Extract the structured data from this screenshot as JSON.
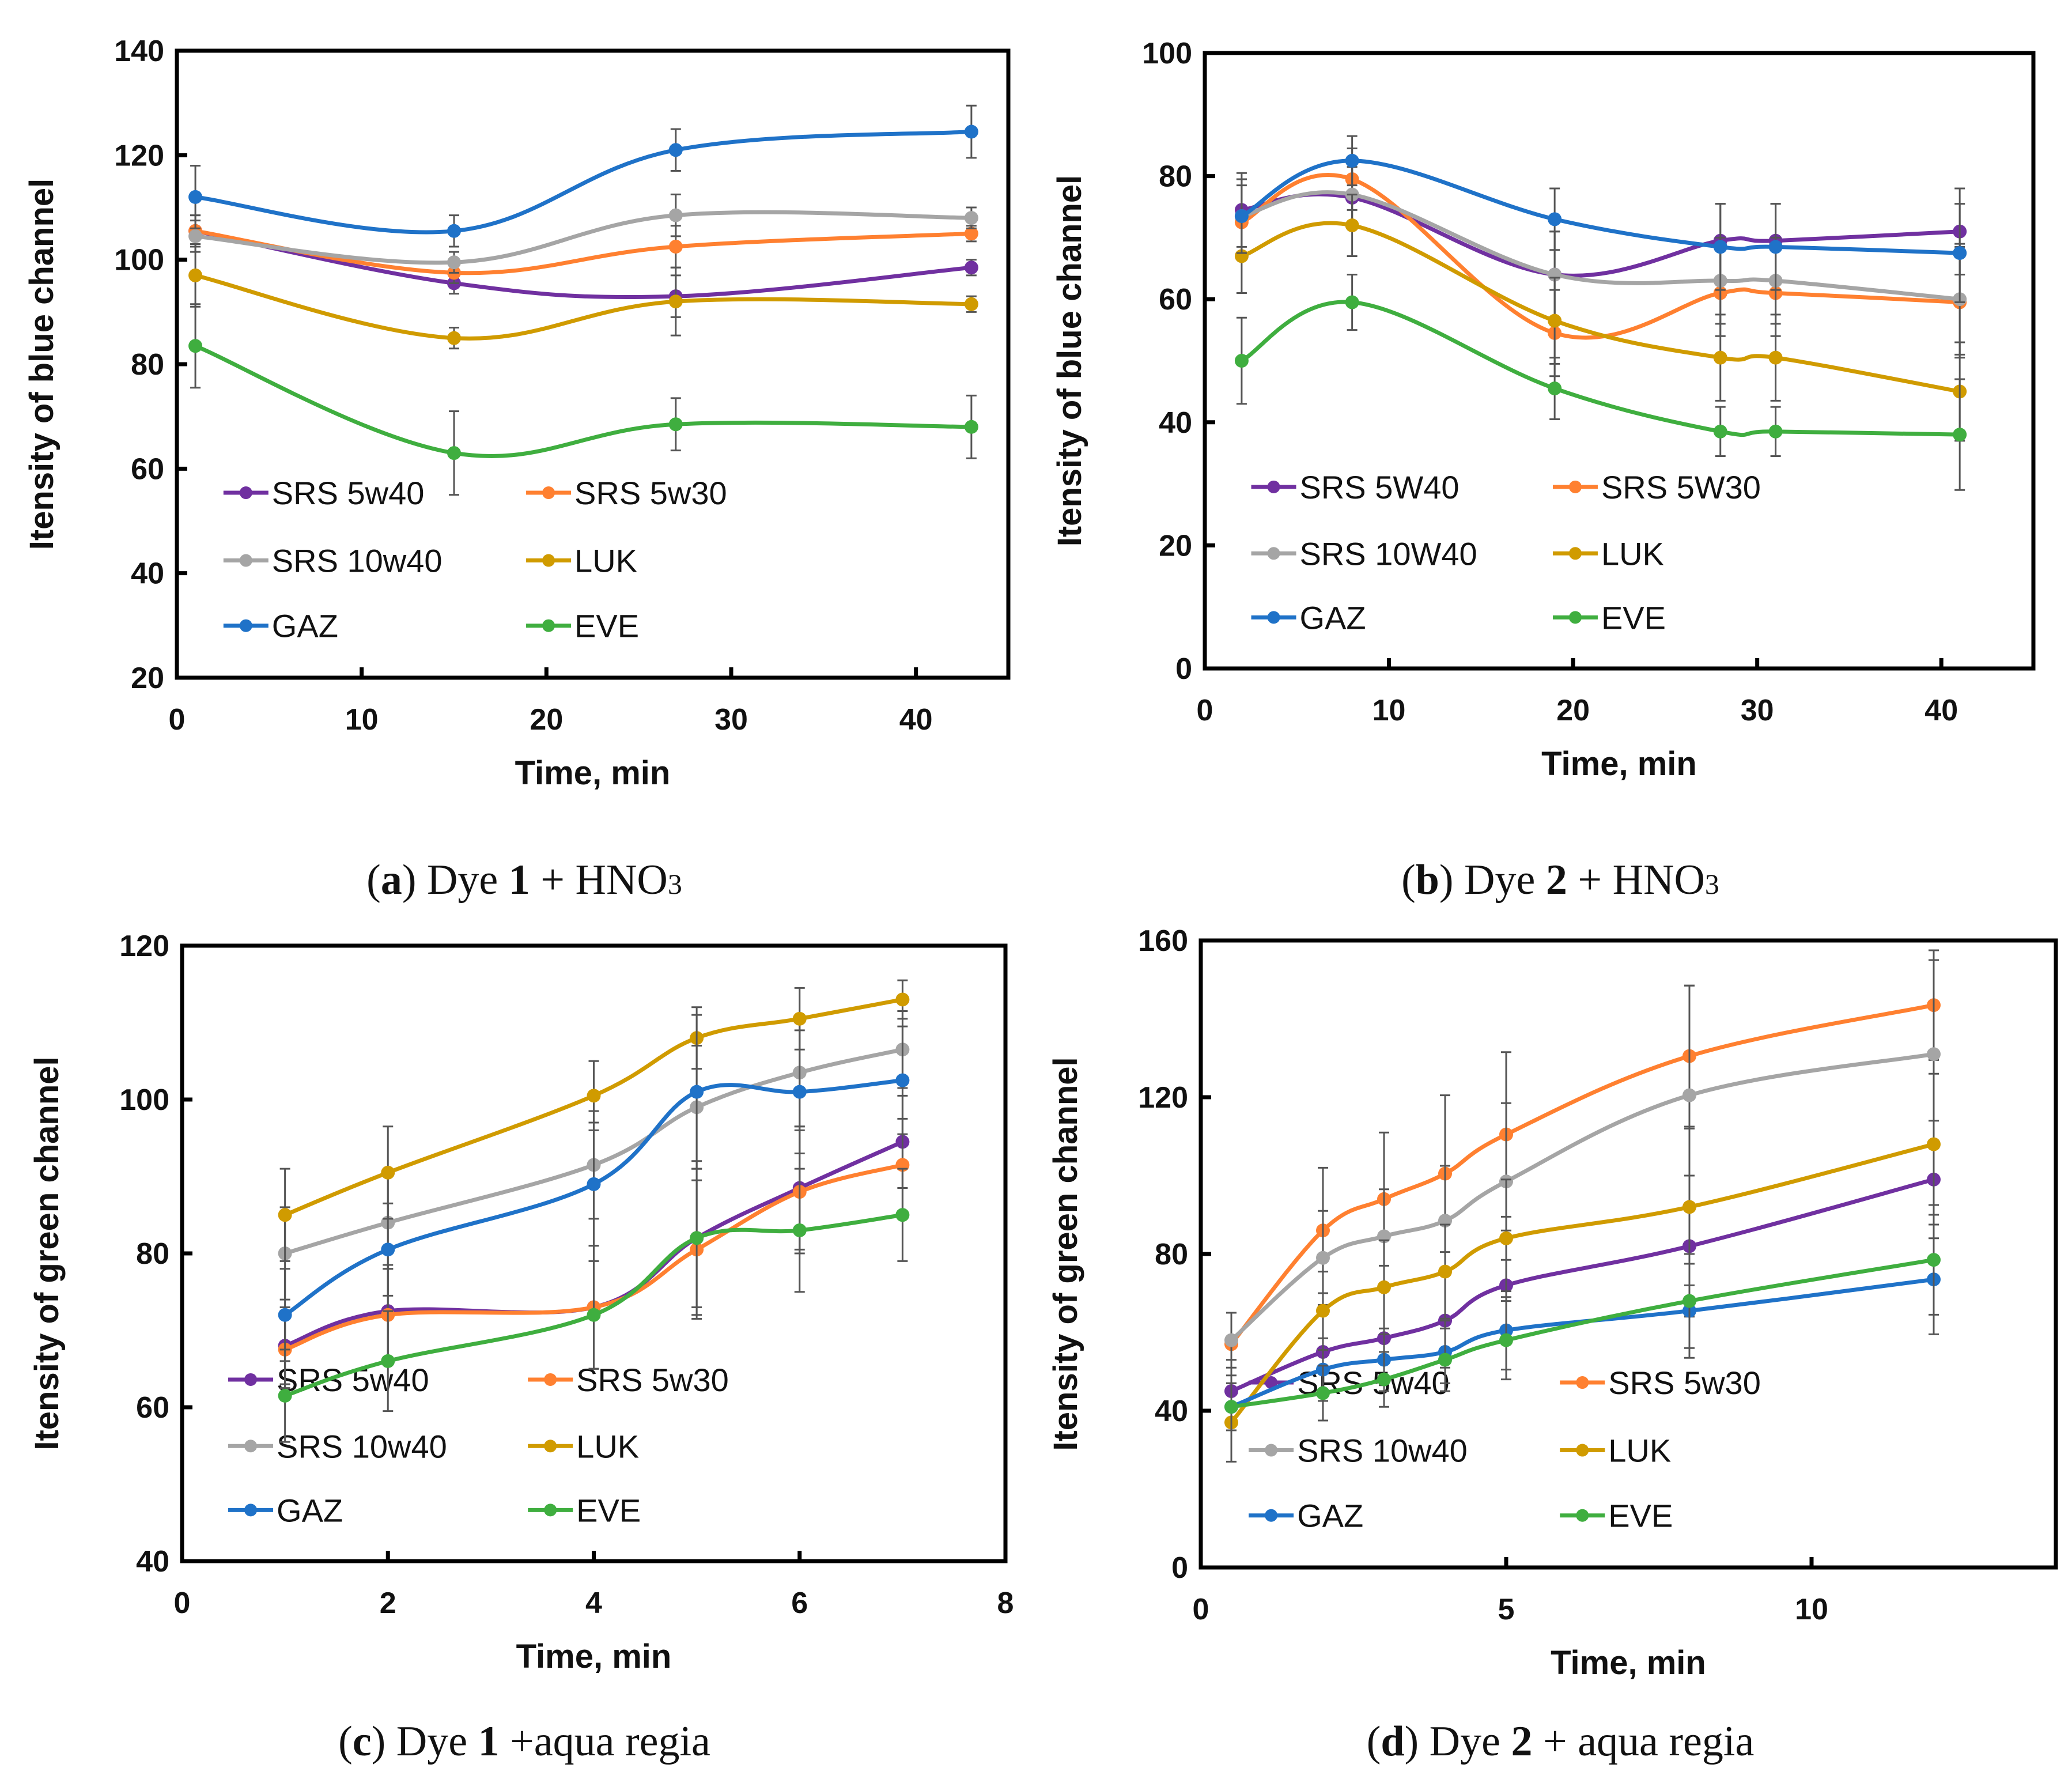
{
  "colors": {
    "SRS 5w40": "#7030A0",
    "SRS 5w30": "#FF8030",
    "SRS 10w40": "#A5A5A5",
    "LUK": "#D09B00",
    "GAZ": "#1F72C8",
    "EVE": "#3FAE3F"
  },
  "captions": [
    {
      "letter": "a",
      "pre": " Dye ",
      "num": "1",
      "post": " + HNO",
      "sub": "3"
    },
    {
      "letter": "b",
      "pre": " Dye ",
      "num": "2",
      "post": " + HNO",
      "sub": "3"
    },
    {
      "letter": "c",
      "pre": " Dye ",
      "num": "1",
      "post": " +aqua regia",
      "sub": ""
    },
    {
      "letter": "d",
      "pre": " Dye ",
      "num": "2",
      "post": " + aqua regia",
      "sub": ""
    }
  ],
  "chart_data": [
    {
      "type": "line",
      "title": "",
      "xlabel": "Time, min",
      "ylabel": "Itensity of blue channel",
      "xlim": [
        0,
        45
      ],
      "ylim": [
        20,
        140
      ],
      "xticks": [
        0,
        10,
        20,
        30,
        40
      ],
      "yticks": [
        20,
        40,
        60,
        80,
        100,
        120,
        140
      ],
      "grid": false,
      "legend": "bottom-left",
      "error_bars": true,
      "smooth": true,
      "x": [
        1,
        15,
        27,
        43
      ],
      "series": [
        {
          "name": "SRS 5w40",
          "key": "SRS 5w40",
          "values": [
            105.5,
            95.5,
            93,
            98.5
          ],
          "errors": [
            3,
            2,
            4,
            1.5
          ]
        },
        {
          "name": "SRS 5w30",
          "key": "SRS 5w30",
          "values": [
            105.5,
            97.5,
            102.5,
            105
          ],
          "errors": [
            3,
            2,
            4,
            1.5
          ]
        },
        {
          "name": "SRS 10w40",
          "key": "SRS 10w40",
          "values": [
            104.5,
            99.5,
            108.5,
            108
          ],
          "errors": [
            3,
            2,
            4,
            2
          ]
        },
        {
          "name": "LUK",
          "key": "LUK",
          "values": [
            97,
            85,
            92,
            91.5
          ],
          "errors": [
            6,
            2,
            6.5,
            1.5
          ]
        },
        {
          "name": "GAZ",
          "key": "GAZ",
          "values": [
            112,
            105.5,
            121,
            124.5
          ],
          "errors": [
            6,
            3,
            4,
            5
          ]
        },
        {
          "name": "EVE",
          "key": "EVE",
          "values": [
            83.5,
            63,
            68.5,
            68
          ],
          "errors": [
            8,
            8,
            5,
            6
          ]
        }
      ]
    },
    {
      "type": "line",
      "title": "",
      "xlabel": "Time, min",
      "ylabel": "Itensity of blue channel",
      "xlim": [
        0,
        45
      ],
      "ylim": [
        0,
        100
      ],
      "xticks": [
        0,
        10,
        20,
        30,
        40
      ],
      "yticks": [
        0,
        20,
        40,
        60,
        80,
        100
      ],
      "grid": false,
      "legend": "bottom-left",
      "error_bars": true,
      "smooth": true,
      "x": [
        2,
        8,
        19,
        28,
        31,
        41
      ],
      "series": [
        {
          "name": "SRS 5W40",
          "key": "SRS 5w40",
          "values": [
            74.5,
            76.5,
            64,
            69.5,
            69.5,
            71
          ],
          "errors": [
            6,
            5,
            7,
            6,
            6,
            7
          ]
        },
        {
          "name": "SRS 5W30",
          "key": "SRS 5w30",
          "values": [
            72.5,
            79.5,
            54.5,
            61,
            61,
            59.5
          ],
          "errors": [
            6,
            5,
            7,
            7,
            7,
            9
          ]
        },
        {
          "name": "SRS 10W40",
          "key": "SRS 10w40",
          "values": [
            73.5,
            77,
            64,
            63,
            63,
            60
          ],
          "errors": [
            6,
            5,
            7,
            7,
            7,
            9
          ]
        },
        {
          "name": "LUK",
          "key": "LUK",
          "values": [
            67,
            72,
            56.5,
            50.5,
            50.5,
            45
          ],
          "errors": [
            6,
            5,
            7,
            7,
            7,
            8
          ]
        },
        {
          "name": "GAZ",
          "key": "GAZ",
          "values": [
            73.5,
            82.5,
            73,
            68.5,
            68.5,
            67.5
          ],
          "errors": [
            6,
            4,
            5,
            7,
            7,
            8
          ]
        },
        {
          "name": "EVE",
          "key": "EVE",
          "values": [
            50,
            59.5,
            45.5,
            38.5,
            38.5,
            38
          ],
          "errors": [
            7,
            4.5,
            5,
            4,
            4,
            9
          ]
        }
      ]
    },
    {
      "type": "line",
      "title": "",
      "xlabel": "Time, min",
      "ylabel": "Itensity of green channel",
      "xlim": [
        0,
        8
      ],
      "ylim": [
        40,
        120
      ],
      "xticks": [
        0,
        2,
        4,
        6,
        8
      ],
      "yticks": [
        40,
        60,
        80,
        100,
        120
      ],
      "grid": false,
      "legend": "bottom-left",
      "error_bars": true,
      "smooth": true,
      "x": [
        1,
        2,
        4,
        5,
        6,
        7
      ],
      "series": [
        {
          "name": "SRS 5w40",
          "key": "SRS 5w40",
          "values": [
            68,
            72.5,
            73,
            82,
            88.5,
            94.5
          ],
          "errors": [
            5,
            6,
            8,
            9,
            8,
            6
          ]
        },
        {
          "name": "SRS 5w30",
          "key": "SRS 5w30",
          "values": [
            67.5,
            72,
            73,
            80.5,
            88,
            91.5
          ],
          "errors": [
            5,
            6,
            8,
            9,
            8,
            6
          ]
        },
        {
          "name": "SRS 10w40",
          "key": "SRS 10w40",
          "values": [
            80,
            84,
            91.5,
            99,
            103.5,
            106.5
          ],
          "errors": [
            6,
            6,
            7,
            8,
            7,
            5
          ]
        },
        {
          "name": "LUK",
          "key": "LUK",
          "values": [
            85,
            90.5,
            100.5,
            108,
            110.5,
            113
          ],
          "errors": [
            6,
            6,
            4.5,
            4,
            4,
            2.5
          ]
        },
        {
          "name": "GAZ",
          "key": "GAZ",
          "values": [
            72,
            80.5,
            89,
            101,
            101,
            102.5
          ],
          "errors": [
            6,
            6,
            8,
            10,
            8,
            7
          ]
        },
        {
          "name": "EVE",
          "key": "EVE",
          "values": [
            61.5,
            66,
            72,
            82,
            83,
            85
          ],
          "errors": [
            6,
            6.5,
            7,
            10,
            8,
            6
          ]
        }
      ]
    },
    {
      "type": "line",
      "title": "",
      "xlabel": "Time, min",
      "ylabel": "Itensity of green channel",
      "xlim": [
        0,
        14
      ],
      "ylim": [
        0,
        160
      ],
      "xticks": [
        0,
        5,
        10
      ],
      "yticks": [
        0,
        40,
        80,
        120,
        160
      ],
      "grid": false,
      "legend": "bottom-left",
      "error_bars": true,
      "smooth": true,
      "x": [
        0.5,
        2,
        3,
        4,
        5,
        8,
        12
      ],
      "series": [
        {
          "name": "SRS 5w40",
          "key": "SRS 5w40",
          "values": [
            45,
            55,
            58.5,
            63,
            72,
            82,
            99
          ],
          "errors": [
            8,
            10,
            12,
            12,
            14,
            18,
            15
          ]
        },
        {
          "name": "SRS 5w30",
          "key": "SRS 5w30",
          "values": [
            57,
            86,
            94,
            100.5,
            110.5,
            130.5,
            143.5
          ],
          "errors": [
            8,
            16,
            17,
            20,
            21,
            18,
            14
          ]
        },
        {
          "name": "SRS 10w40",
          "key": "SRS 10w40",
          "values": [
            58,
            79,
            84.5,
            88.5,
            98.5,
            120.5,
            131
          ],
          "errors": [
            7,
            12,
            12,
            14,
            20,
            28,
            24
          ]
        },
        {
          "name": "LUK",
          "key": "LUK",
          "values": [
            37,
            65.5,
            71.5,
            75.5,
            84,
            92,
            108
          ],
          "errors": [
            10,
            10,
            12,
            12,
            15,
            20,
            18
          ]
        },
        {
          "name": "GAZ",
          "key": "GAZ",
          "values": [
            41,
            50.5,
            53,
            55,
            60.5,
            65.5,
            73.5
          ],
          "errors": [
            6,
            8,
            8,
            8,
            10,
            12,
            14
          ]
        },
        {
          "name": "EVE",
          "key": "EVE",
          "values": [
            41,
            44.5,
            48,
            53,
            58,
            68,
            78.5
          ],
          "errors": [
            6,
            7,
            7,
            8,
            10,
            12,
            14
          ]
        }
      ]
    }
  ]
}
